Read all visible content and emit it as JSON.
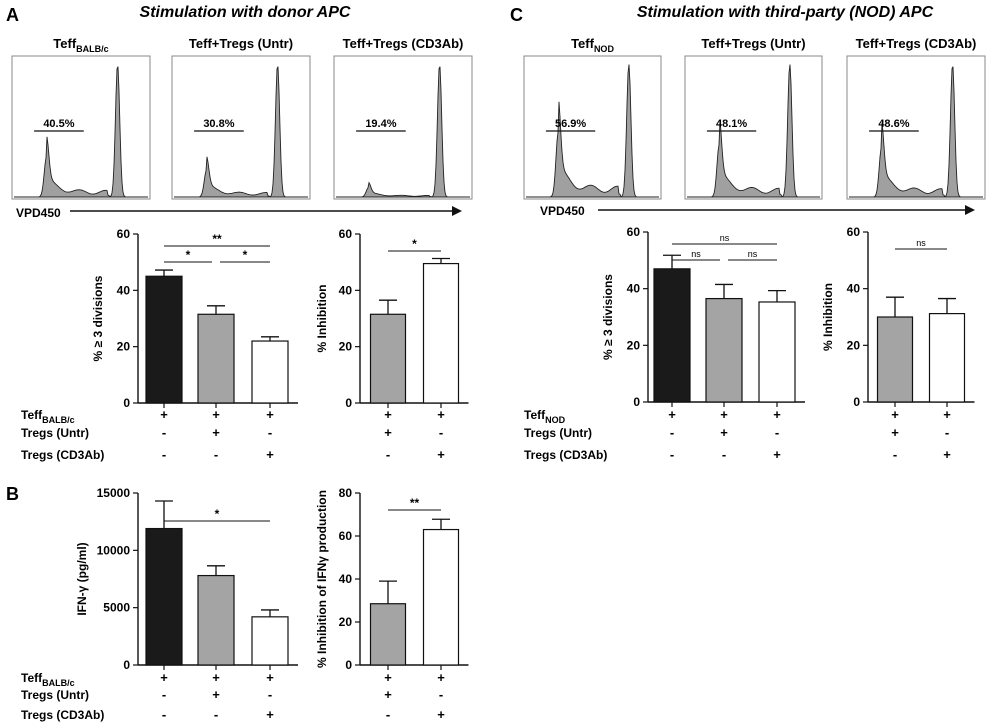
{
  "panels": {
    "A": {
      "letter": "A",
      "title": "Stimulation with donor APC"
    },
    "B": {
      "letter": "B"
    },
    "C": {
      "letter": "C",
      "title": "Stimulation with third-party (NOD) APC"
    }
  },
  "histograms": {
    "axis_label": "VPD450",
    "A": [
      {
        "label": "Teff",
        "label_sub": "BALB/c",
        "gate_pct": "40.5%",
        "left_peak": 0.42,
        "right_peak": 1.0
      },
      {
        "label": "Teff+Tregs (Untr)",
        "label_sub": "",
        "gate_pct": "30.8%",
        "left_peak": 0.28,
        "right_peak": 1.0
      },
      {
        "label": "Teff+Tregs (CD3Ab)",
        "label_sub": "",
        "gate_pct": "19.4%",
        "left_peak": 0.1,
        "right_peak": 1.0
      }
    ],
    "C": [
      {
        "label": "Teff",
        "label_sub": "NOD",
        "gate_pct": "56.9%",
        "left_peak": 0.68,
        "right_peak": 1.0
      },
      {
        "label": "Teff+Tregs (Untr)",
        "label_sub": "",
        "gate_pct": "48.1%",
        "left_peak": 0.55,
        "right_peak": 1.0
      },
      {
        "label": "Teff+Tregs (CD3Ab)",
        "label_sub": "",
        "gate_pct": "48.6%",
        "left_peak": 0.52,
        "right_peak": 1.0
      }
    ]
  },
  "condition_rows": {
    "A": {
      "teff_label": "Teff",
      "teff_sub": "BALB/c",
      "row2": "Tregs (Untr)",
      "row3": "Tregs (CD3Ab)"
    },
    "B": {
      "teff_label": "Teff",
      "teff_sub": "BALB/c",
      "row2": "Tregs (Untr)",
      "row3": "Tregs (CD3Ab)"
    },
    "C": {
      "teff_label": "Teff",
      "teff_sub": "NOD",
      "row2": "Tregs (Untr)",
      "row3": "Tregs (CD3Ab)"
    },
    "three_col_signs": [
      [
        "+",
        "+",
        "+"
      ],
      [
        "-",
        "+",
        "-"
      ],
      [
        "-",
        "-",
        "+"
      ]
    ],
    "two_col_signs": [
      [
        "+",
        "+"
      ],
      [
        "+",
        "-"
      ],
      [
        "-",
        "+"
      ]
    ]
  },
  "colors": {
    "black_bar": "#1a1a1a",
    "gray_bar": "#a4a4a4",
    "white_bar": "#ffffff",
    "hist_fill": "#a0a0a0"
  },
  "chart_data": [
    {
      "id": "A-div",
      "type": "bar",
      "categories": [
        "Teff",
        "Teff+Tregs (Untr)",
        "Teff+Tregs (CD3Ab)"
      ],
      "values": [
        45,
        31.5,
        22
      ],
      "errors": [
        2.2,
        3,
        1.5
      ],
      "fills": [
        "black",
        "gray",
        "white"
      ],
      "ylabel": "% ≥ 3 divisions",
      "ylim": [
        0,
        60
      ],
      "yticks": [
        0,
        20,
        40,
        60
      ],
      "tick_labels": [
        "0",
        "20",
        "40",
        "60"
      ],
      "sig": [
        {
          "from": 0,
          "to": 2,
          "label": "**",
          "level": 2
        },
        {
          "from": 0,
          "to": 1,
          "label": "*",
          "level": 1
        },
        {
          "from": 1,
          "to": 2,
          "label": "*",
          "level": 1
        }
      ]
    },
    {
      "id": "A-inh",
      "type": "bar",
      "categories": [
        "Tregs (Untr)",
        "Tregs (CD3Ab)"
      ],
      "values": [
        31.5,
        49.5
      ],
      "errors": [
        5,
        1.8
      ],
      "fills": [
        "gray",
        "white"
      ],
      "ylabel": "% Inhibition",
      "ylim": [
        0,
        60
      ],
      "yticks": [
        0,
        20,
        40,
        60
      ],
      "tick_labels": [
        "0",
        "20",
        "40",
        "60"
      ],
      "sig": [
        {
          "from": 0,
          "to": 1,
          "label": "*",
          "level": 1
        }
      ]
    },
    {
      "id": "B-ifn",
      "type": "bar",
      "categories": [
        "Teff",
        "Teff+Tregs (Untr)",
        "Teff+Tregs (CD3Ab)"
      ],
      "values": [
        11900,
        7800,
        4200
      ],
      "errors": [
        2400,
        850,
        600
      ],
      "fills": [
        "black",
        "gray",
        "white"
      ],
      "ylabel": "IFN-γ (pg/ml)",
      "ylim": [
        0,
        15000
      ],
      "yticks": [
        0,
        5000,
        10000,
        15000
      ],
      "tick_labels": [
        "0",
        "5000",
        "10000",
        "15000"
      ],
      "sig": [
        {
          "from": 0,
          "to": 2,
          "label": "*",
          "level": 1
        }
      ]
    },
    {
      "id": "B-inh",
      "type": "bar",
      "categories": [
        "Tregs (Untr)",
        "Tregs (CD3Ab)"
      ],
      "values": [
        28.5,
        63
      ],
      "errors": [
        10.5,
        4.8
      ],
      "fills": [
        "gray",
        "white"
      ],
      "ylabel": "% Inhibition of IFNγ production",
      "ylim": [
        0,
        80
      ],
      "yticks": [
        0,
        20,
        40,
        60,
        80
      ],
      "tick_labels": [
        "0",
        "20",
        "40",
        "60",
        "80"
      ],
      "sig": [
        {
          "from": 0,
          "to": 1,
          "label": "**",
          "level": 1
        }
      ]
    },
    {
      "id": "C-div",
      "type": "bar",
      "categories": [
        "Teff",
        "Teff+Tregs (Untr)",
        "Teff+Tregs (CD3Ab)"
      ],
      "values": [
        47,
        36.5,
        35.3
      ],
      "errors": [
        4.8,
        5,
        4
      ],
      "fills": [
        "black",
        "gray",
        "white"
      ],
      "ylabel": "% ≥ 3 divisions",
      "ylim": [
        0,
        60
      ],
      "yticks": [
        0,
        20,
        40,
        60
      ],
      "tick_labels": [
        "0",
        "20",
        "40",
        "60"
      ],
      "sig": [
        {
          "from": 0,
          "to": 2,
          "label": "ns",
          "level": 2
        },
        {
          "from": 0,
          "to": 1,
          "label": "ns",
          "level": 1
        },
        {
          "from": 1,
          "to": 2,
          "label": "ns",
          "level": 1
        }
      ]
    },
    {
      "id": "C-inh",
      "type": "bar",
      "categories": [
        "Tregs (Untr)",
        "Tregs (CD3Ab)"
      ],
      "values": [
        30,
        31.2
      ],
      "errors": [
        7,
        5.3
      ],
      "fills": [
        "gray",
        "white"
      ],
      "ylabel": "% Inhibition",
      "ylim": [
        0,
        60
      ],
      "yticks": [
        0,
        20,
        40,
        60
      ],
      "tick_labels": [
        "0",
        "20",
        "40",
        "60"
      ],
      "sig": [
        {
          "from": 0,
          "to": 1,
          "label": "ns",
          "level": 1
        }
      ]
    }
  ]
}
